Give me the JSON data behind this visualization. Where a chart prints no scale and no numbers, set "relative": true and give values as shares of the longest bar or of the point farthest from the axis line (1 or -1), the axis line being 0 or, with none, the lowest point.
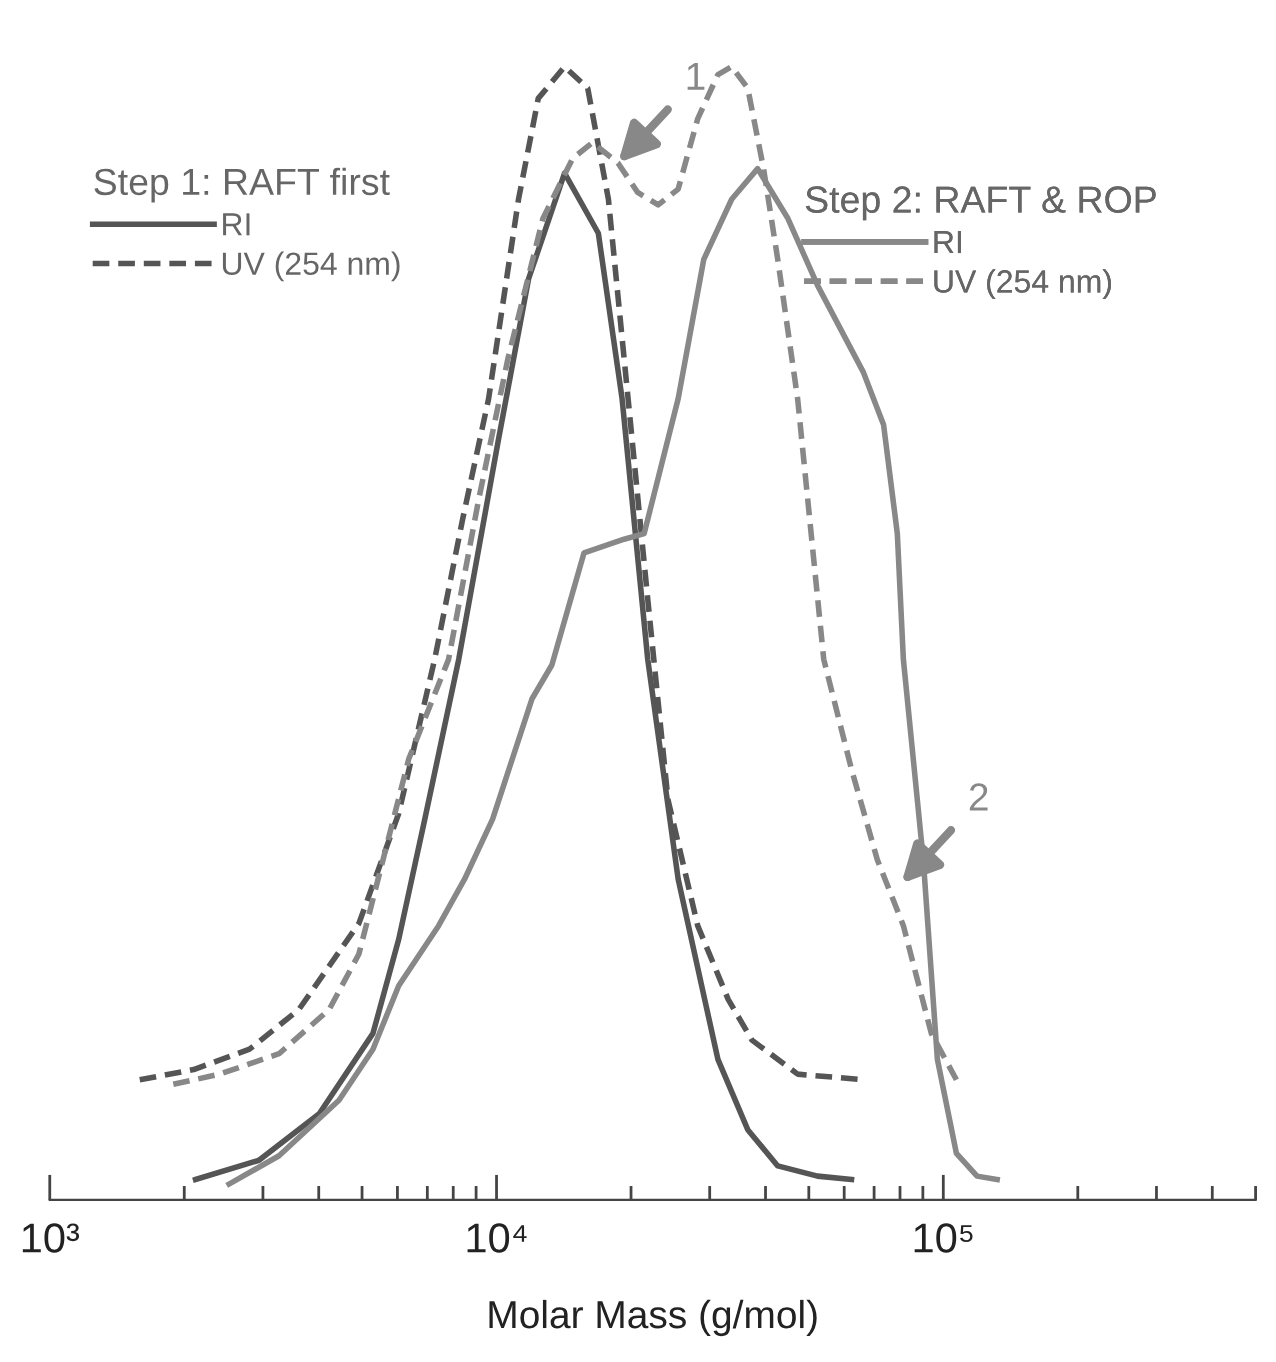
{
  "chart_data": {
    "type": "line",
    "relative": true,
    "log": "x",
    "xlabel": "Molar Mass (g/mol)",
    "xlim": [
      1000,
      500000
    ],
    "xticks": [
      {
        "value": 1000,
        "label": "10³"
      },
      {
        "value": 10000,
        "label": "10⁴"
      },
      {
        "value": 100000,
        "label": "10⁵"
      }
    ],
    "legend": "top",
    "annotations": [
      "Step 1: RAFT first",
      "Step 2: RAFT & ROP",
      {
        "text": "1",
        "x": 18700,
        "y": 0.915
      },
      {
        "text": "2",
        "x": 80500,
        "y": 0.279
      }
    ],
    "series": [
      {
        "name": "RI",
        "color": "#555555",
        "line_style": "solid",
        "x": [
          2120,
          2940,
          4010,
          5290,
          6040,
          6910,
          8230,
          10100,
          11800,
          14200,
          16900,
          19100,
          21800,
          25500,
          31300,
          36500,
          42600,
          52300,
          62300
        ],
        "values": [
          0.018,
          0.035,
          0.076,
          0.147,
          0.23,
          0.336,
          0.477,
          0.671,
          0.813,
          0.906,
          0.853,
          0.707,
          0.477,
          0.283,
          0.124,
          0.062,
          0.03,
          0.021,
          0.018
        ]
      },
      {
        "name": "UV (254 nm)",
        "color": "#555555",
        "line_style": "dashed",
        "x": [
          1590,
          2100,
          2800,
          3610,
          4920,
          6040,
          7270,
          8400,
          9600,
          11200,
          12400,
          14200,
          16000,
          17800,
          19700,
          21800,
          24200,
          28200,
          33000,
          37300,
          47200,
          66300
        ],
        "values": [
          0.106,
          0.115,
          0.133,
          0.168,
          0.244,
          0.341,
          0.477,
          0.601,
          0.707,
          0.883,
          0.972,
          1.0,
          0.981,
          0.883,
          0.707,
          0.53,
          0.353,
          0.242,
          0.177,
          0.141,
          0.111,
          0.106
        ]
      },
      {
        "name": "RI",
        "color": "#888888",
        "line_style": "solid",
        "x": [
          2520,
          3260,
          4440,
          5290,
          6040,
          7420,
          8480,
          9800,
          12000,
          13300,
          15700,
          19300,
          21400,
          25500,
          29100,
          33600,
          38400,
          44900,
          52300,
          66300,
          73500,
          78900,
          81400,
          90200,
          97000,
          107000,
          119000,
          132000
        ],
        "values": [
          0.014,
          0.039,
          0.088,
          0.133,
          0.189,
          0.242,
          0.283,
          0.336,
          0.442,
          0.472,
          0.571,
          0.583,
          0.588,
          0.707,
          0.83,
          0.883,
          0.91,
          0.866,
          0.807,
          0.73,
          0.684,
          0.588,
          0.477,
          0.3,
          0.124,
          0.041,
          0.021,
          0.018
        ]
      },
      {
        "name": "UV (254 nm)",
        "color": "#888888",
        "line_style": "dashed",
        "x": [
          1890,
          2400,
          3260,
          4220,
          4920,
          5570,
          6360,
          7810,
          9120,
          10600,
          12700,
          14800,
          16400,
          18700,
          20700,
          23000,
          25500,
          28200,
          31300,
          33600,
          36500,
          39600,
          42600,
          47200,
          54000,
          62300,
          71200,
          81400,
          94000,
          107000
        ],
        "values": [
          0.102,
          0.111,
          0.129,
          0.168,
          0.217,
          0.3,
          0.389,
          0.477,
          0.618,
          0.742,
          0.866,
          0.919,
          0.933,
          0.915,
          0.889,
          0.878,
          0.892,
          0.954,
          0.993,
          1.0,
          0.981,
          0.91,
          0.83,
          0.707,
          0.477,
          0.38,
          0.3,
          0.242,
          0.147,
          0.106
        ]
      }
    ]
  }
}
